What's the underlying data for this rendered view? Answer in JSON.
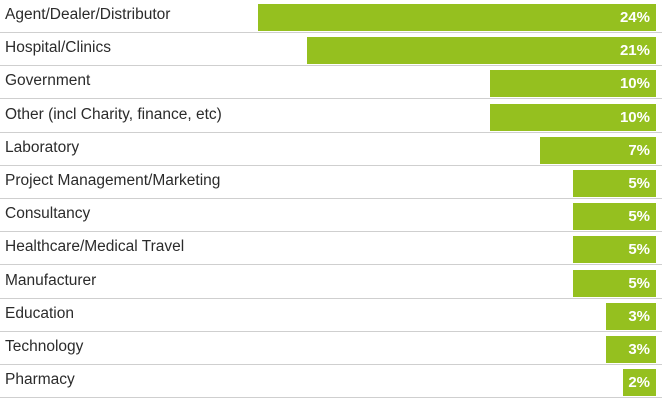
{
  "chart_data": {
    "type": "bar",
    "orientation": "horizontal",
    "categories": [
      "Agent/Dealer/Distributor",
      "Hospital/Clinics",
      "Government",
      "Other (incl Charity, finance, etc)",
      "Laboratory",
      "Project Management/Marketing",
      "Consultancy",
      "Healthcare/Medical Travel",
      "Manufacturer",
      "Education",
      "Technology",
      "Pharmacy"
    ],
    "values": [
      24,
      21,
      10,
      10,
      7,
      5,
      5,
      5,
      5,
      3,
      3,
      2
    ],
    "value_labels": [
      "24%",
      "21%",
      "10%",
      "10%",
      "7%",
      "5%",
      "5%",
      "5%",
      "5%",
      "3%",
      "3%",
      "2%"
    ],
    "unit": "%",
    "bar_color": "#95c01f",
    "grid": false,
    "legend": "none"
  }
}
